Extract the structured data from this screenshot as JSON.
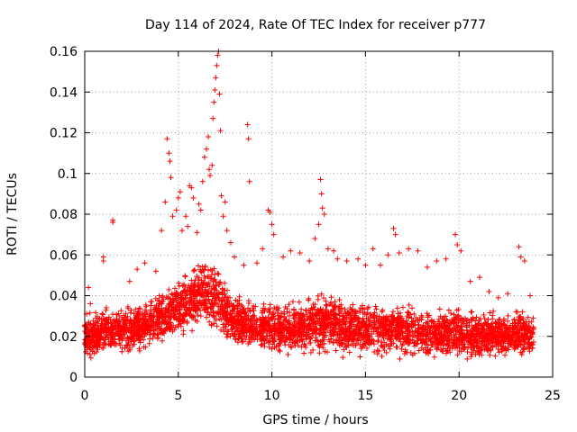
{
  "chart_data": {
    "type": "scatter",
    "title": "Day 114 of 2024, Rate Of TEC Index for receiver p777",
    "xlabel": "GPS time / hours",
    "ylabel": "ROTI / TECUs",
    "xlim": [
      0,
      25
    ],
    "ylim": [
      0,
      0.16
    ],
    "xticks": [
      0,
      5,
      10,
      15,
      20,
      25
    ],
    "xtick_labels": [
      "0",
      "5",
      "10",
      "15",
      "20",
      "25"
    ],
    "yticks": [
      0,
      0.02,
      0.04,
      0.06,
      0.08,
      0.1,
      0.12,
      0.14,
      0.16
    ],
    "ytick_labels": [
      "0",
      "0.02",
      "0.04",
      "0.06",
      "0.08",
      "0.1",
      "0.12",
      "0.14",
      "0.16"
    ],
    "grid": true,
    "marker": "+",
    "color": "#ff0000",
    "series": [
      {
        "name": "ROTI",
        "points": [
          [
            0.1,
            0.031
          ],
          [
            0.2,
            0.044
          ],
          [
            0.3,
            0.036
          ],
          [
            1.0,
            0.059
          ],
          [
            1.0,
            0.057
          ],
          [
            1.5,
            0.077
          ],
          [
            1.5,
            0.076
          ],
          [
            2.4,
            0.047
          ],
          [
            2.8,
            0.053
          ],
          [
            3.2,
            0.056
          ],
          [
            3.8,
            0.052
          ],
          [
            4.1,
            0.072
          ],
          [
            4.3,
            0.086
          ],
          [
            4.4,
            0.117
          ],
          [
            4.5,
            0.11
          ],
          [
            4.55,
            0.106
          ],
          [
            4.6,
            0.098
          ],
          [
            4.7,
            0.079
          ],
          [
            4.9,
            0.082
          ],
          [
            5.0,
            0.088
          ],
          [
            5.1,
            0.091
          ],
          [
            5.2,
            0.072
          ],
          [
            5.4,
            0.079
          ],
          [
            5.5,
            0.074
          ],
          [
            5.6,
            0.094
          ],
          [
            5.7,
            0.093
          ],
          [
            5.8,
            0.088
          ],
          [
            6.0,
            0.071
          ],
          [
            6.1,
            0.085
          ],
          [
            6.2,
            0.082
          ],
          [
            6.3,
            0.096
          ],
          [
            6.4,
            0.108
          ],
          [
            6.5,
            0.112
          ],
          [
            6.6,
            0.118
          ],
          [
            6.65,
            0.102
          ],
          [
            6.7,
            0.099
          ],
          [
            6.8,
            0.104
          ],
          [
            6.85,
            0.127
          ],
          [
            6.9,
            0.135
          ],
          [
            6.95,
            0.141
          ],
          [
            7.0,
            0.147
          ],
          [
            7.05,
            0.153
          ],
          [
            7.1,
            0.158
          ],
          [
            7.15,
            0.16
          ],
          [
            7.2,
            0.139
          ],
          [
            7.25,
            0.121
          ],
          [
            7.3,
            0.089
          ],
          [
            7.4,
            0.079
          ],
          [
            7.5,
            0.086
          ],
          [
            7.6,
            0.072
          ],
          [
            7.8,
            0.066
          ],
          [
            8.0,
            0.059
          ],
          [
            8.5,
            0.055
          ],
          [
            8.7,
            0.124
          ],
          [
            8.75,
            0.117
          ],
          [
            8.8,
            0.096
          ],
          [
            9.2,
            0.056
          ],
          [
            9.5,
            0.063
          ],
          [
            9.8,
            0.082
          ],
          [
            9.9,
            0.081
          ],
          [
            10.0,
            0.075
          ],
          [
            10.1,
            0.07
          ],
          [
            10.6,
            0.059
          ],
          [
            11.0,
            0.062
          ],
          [
            11.5,
            0.061
          ],
          [
            12.0,
            0.057
          ],
          [
            12.3,
            0.068
          ],
          [
            12.5,
            0.075
          ],
          [
            12.6,
            0.097
          ],
          [
            12.65,
            0.09
          ],
          [
            12.7,
            0.083
          ],
          [
            12.8,
            0.08
          ],
          [
            13.0,
            0.063
          ],
          [
            13.3,
            0.062
          ],
          [
            13.5,
            0.058
          ],
          [
            14.0,
            0.057
          ],
          [
            14.6,
            0.058
          ],
          [
            15.0,
            0.055
          ],
          [
            15.4,
            0.063
          ],
          [
            15.8,
            0.055
          ],
          [
            16.2,
            0.06
          ],
          [
            16.5,
            0.073
          ],
          [
            16.6,
            0.07
          ],
          [
            16.8,
            0.061
          ],
          [
            17.3,
            0.063
          ],
          [
            17.8,
            0.062
          ],
          [
            18.3,
            0.054
          ],
          [
            18.8,
            0.057
          ],
          [
            19.3,
            0.058
          ],
          [
            19.8,
            0.07
          ],
          [
            19.9,
            0.065
          ],
          [
            20.1,
            0.062
          ],
          [
            20.6,
            0.047
          ],
          [
            21.1,
            0.049
          ],
          [
            21.6,
            0.042
          ],
          [
            22.1,
            0.039
          ],
          [
            22.6,
            0.041
          ],
          [
            23.2,
            0.064
          ],
          [
            23.3,
            0.059
          ],
          [
            23.5,
            0.057
          ],
          [
            23.8,
            0.04
          ]
        ],
        "band": [
          [
            0,
            0.011,
            0.028
          ],
          [
            1,
            0.012,
            0.032
          ],
          [
            2,
            0.013,
            0.032
          ],
          [
            3,
            0.014,
            0.035
          ],
          [
            4,
            0.017,
            0.04
          ],
          [
            5,
            0.02,
            0.048
          ],
          [
            6,
            0.024,
            0.055
          ],
          [
            7,
            0.024,
            0.056
          ],
          [
            8,
            0.015,
            0.038
          ],
          [
            9,
            0.014,
            0.036
          ],
          [
            10,
            0.013,
            0.036
          ],
          [
            11,
            0.012,
            0.035
          ],
          [
            12,
            0.013,
            0.037
          ],
          [
            13,
            0.014,
            0.04
          ],
          [
            14,
            0.012,
            0.036
          ],
          [
            15,
            0.012,
            0.034
          ],
          [
            16,
            0.012,
            0.036
          ],
          [
            17,
            0.012,
            0.034
          ],
          [
            18,
            0.011,
            0.032
          ],
          [
            19,
            0.011,
            0.033
          ],
          [
            20,
            0.011,
            0.032
          ],
          [
            21,
            0.011,
            0.03
          ],
          [
            22,
            0.011,
            0.03
          ],
          [
            23,
            0.011,
            0.031
          ],
          [
            24,
            0.011,
            0.03
          ]
        ]
      }
    ]
  }
}
